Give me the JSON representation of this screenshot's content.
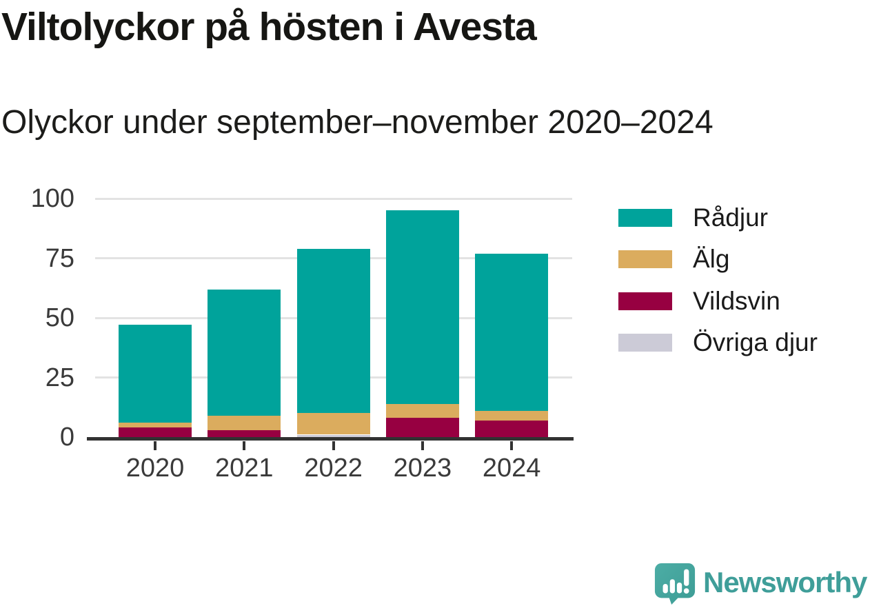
{
  "header": {
    "title": "Viltolyckor på hösten i Avesta",
    "subtitle": "Olyckor under september–november 2020–2024"
  },
  "chart_data": {
    "type": "bar",
    "stacked": true,
    "title": "Viltolyckor på hösten i Avesta",
    "subtitle": "Olyckor under september–november 2020–2024",
    "categories": [
      "2020",
      "2021",
      "2022",
      "2023",
      "2024"
    ],
    "series": [
      {
        "name": "Rådjur",
        "color": "#00A39B",
        "values": [
          41,
          53,
          69,
          81,
          66
        ]
      },
      {
        "name": "Älg",
        "color": "#DBAC5E",
        "values": [
          2,
          6,
          9,
          6,
          4
        ]
      },
      {
        "name": "Vildsvin",
        "color": "#970041",
        "values": [
          4,
          3,
          0,
          8,
          7
        ]
      },
      {
        "name": "Övriga djur",
        "color": "#CCCBD7",
        "values": [
          0,
          0,
          1,
          0,
          0
        ]
      }
    ],
    "totals": [
      47,
      62,
      79,
      95,
      77
    ],
    "stack_order_bottom_to_top": [
      "Övriga djur",
      "Vildsvin",
      "Älg",
      "Rådjur"
    ],
    "xlabel": "",
    "ylabel": "",
    "ylim": [
      0,
      100
    ],
    "yticks": [
      0,
      25,
      50,
      75,
      100
    ],
    "grid": true,
    "legend_position": "right"
  },
  "footer": {
    "brand": "Newsworthy"
  },
  "colors": {
    "radjur": "#00A39B",
    "alg": "#DBAC5E",
    "vildsvin": "#970041",
    "ovriga_djur": "#CCCBD7",
    "gridline": "#E3E3E3",
    "axis": "#323232",
    "label": "#3A3A3A",
    "brand_teal": "#3F9E99"
  }
}
